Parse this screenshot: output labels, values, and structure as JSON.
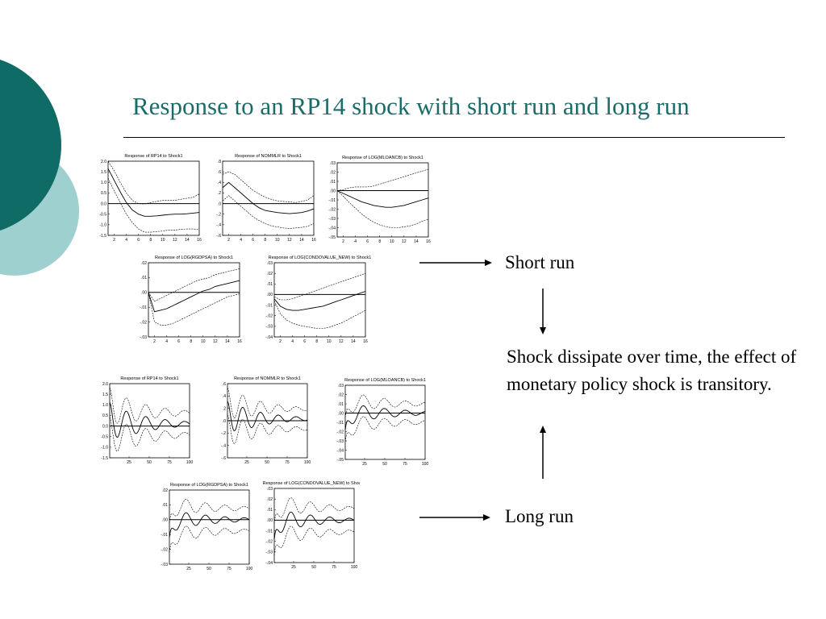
{
  "slide": {
    "title": "Response to an RP14 shock with short run and long run",
    "colors": {
      "title": "#1b6b68",
      "circle_dark": "#0f6b66",
      "circle_light": "#9fd0d0"
    }
  },
  "annotations": {
    "short_run": "Short run",
    "long_run": "Long run",
    "conclusion": "Shock dissipate over time, the effect of monetary policy shock is transitory."
  },
  "chart_data": [
    {
      "type": "line",
      "title": "Response of RP14 to Shock1",
      "yticks": [
        "2.0",
        "1.5",
        "1.0",
        "0.5",
        "0.0",
        "-0.5",
        "-1.0",
        "-1.5"
      ],
      "ylim": [
        -1.5,
        2.0
      ],
      "xticks": [
        "2",
        "4",
        "6",
        "8",
        "10",
        "12",
        "14",
        "16"
      ],
      "xlim": [
        1,
        16
      ],
      "series": [
        {
          "style": "dashed",
          "values": [
            2.0,
            1.55,
            1.0,
            0.5,
            0.15,
            0.0,
            -0.02,
            0.05,
            0.1,
            0.15,
            0.15,
            0.15,
            0.2,
            0.25,
            0.3,
            0.45
          ]
        },
        {
          "style": "solid",
          "values": [
            1.65,
            1.1,
            0.55,
            0.05,
            -0.3,
            -0.5,
            -0.6,
            -0.6,
            -0.58,
            -0.55,
            -0.52,
            -0.5,
            -0.5,
            -0.48,
            -0.45,
            -0.42
          ]
        },
        {
          "style": "dashed",
          "values": [
            1.2,
            0.6,
            0.05,
            -0.5,
            -0.9,
            -1.2,
            -1.35,
            -1.35,
            -1.32,
            -1.3,
            -1.25,
            -1.25,
            -1.22,
            -1.2,
            -1.2,
            -1.22
          ]
        }
      ]
    },
    {
      "type": "line",
      "title": "Response of NOMMLR to Shock1",
      "yticks": [
        ".8",
        ".6",
        ".4",
        ".2",
        ".0",
        "-.2",
        "-.4",
        "-.6"
      ],
      "ylim": [
        -0.6,
        0.8
      ],
      "xticks": [
        "2",
        "4",
        "6",
        "8",
        "10",
        "12",
        "14",
        "16"
      ],
      "xlim": [
        1,
        16
      ],
      "series": [
        {
          "style": "dashed",
          "values": [
            0.55,
            0.6,
            0.55,
            0.45,
            0.35,
            0.25,
            0.18,
            0.12,
            0.08,
            0.05,
            0.04,
            0.03,
            0.02,
            0.04,
            0.07,
            0.15
          ]
        },
        {
          "style": "solid",
          "values": [
            0.3,
            0.4,
            0.3,
            0.2,
            0.1,
            0.0,
            -0.08,
            -0.13,
            -0.15,
            -0.17,
            -0.18,
            -0.19,
            -0.18,
            -0.17,
            -0.14,
            -0.1
          ]
        },
        {
          "style": "dashed",
          "values": [
            0.05,
            0.15,
            0.05,
            -0.05,
            -0.15,
            -0.25,
            -0.32,
            -0.38,
            -0.42,
            -0.44,
            -0.46,
            -0.47,
            -0.46,
            -0.45,
            -0.43,
            -0.38
          ]
        }
      ]
    },
    {
      "type": "line",
      "title": "Response of LOG(MLOANCB) to Shock1",
      "yticks": [
        ".03",
        ".02",
        ".01",
        ".00",
        "-.01",
        "-.02",
        "-.03",
        "-.04",
        "-.05"
      ],
      "ylim": [
        -0.05,
        0.03
      ],
      "xticks": [
        "2",
        "4",
        "6",
        "8",
        "10",
        "12",
        "14",
        "16"
      ],
      "xlim": [
        1,
        16
      ],
      "series": [
        {
          "style": "dashed",
          "values": [
            0.0,
            0.001,
            0.003,
            0.004,
            0.004,
            0.004,
            0.005,
            0.007,
            0.009,
            0.011,
            0.013,
            0.015,
            0.017,
            0.019,
            0.021,
            0.023
          ]
        },
        {
          "style": "solid",
          "values": [
            0.0,
            -0.003,
            -0.006,
            -0.009,
            -0.012,
            -0.014,
            -0.016,
            -0.017,
            -0.018,
            -0.018,
            -0.017,
            -0.016,
            -0.014,
            -0.012,
            -0.01,
            -0.008
          ]
        },
        {
          "style": "dashed",
          "values": [
            0.0,
            -0.006,
            -0.013,
            -0.019,
            -0.025,
            -0.03,
            -0.034,
            -0.037,
            -0.039,
            -0.04,
            -0.04,
            -0.039,
            -0.038,
            -0.036,
            -0.033,
            -0.031
          ]
        }
      ]
    },
    {
      "type": "line",
      "title": "Response of LOG(RGDPSA) to Shock1",
      "yticks": [
        ".02",
        ".01",
        ".00",
        "-.01",
        "-.02",
        "-.03"
      ],
      "ylim": [
        -0.03,
        0.02
      ],
      "xticks": [
        "2",
        "4",
        "6",
        "8",
        "10",
        "12",
        "14",
        "16"
      ],
      "xlim": [
        1,
        16
      ],
      "series": [
        {
          "style": "dashed",
          "values": [
            0.0,
            -0.006,
            -0.004,
            -0.002,
            0.0,
            0.002,
            0.004,
            0.006,
            0.008,
            0.009,
            0.01,
            0.012,
            0.013,
            0.014,
            0.015,
            0.016
          ]
        },
        {
          "style": "solid",
          "values": [
            0.0,
            -0.013,
            -0.012,
            -0.011,
            -0.009,
            -0.007,
            -0.005,
            -0.003,
            -0.001,
            0.001,
            0.002,
            0.004,
            0.005,
            0.006,
            0.007,
            0.008
          ]
        },
        {
          "style": "dashed",
          "values": [
            0.0,
            -0.02,
            -0.022,
            -0.022,
            -0.021,
            -0.019,
            -0.017,
            -0.015,
            -0.013,
            -0.011,
            -0.009,
            -0.007,
            -0.005,
            -0.003,
            -0.002,
            -0.001
          ]
        }
      ]
    },
    {
      "type": "line",
      "title": "Response of LOG(CONDOVALUE_NEW) to Shock1",
      "yticks": [
        ".03",
        ".02",
        ".01",
        ".00",
        "-.01",
        "-.02",
        "-.03",
        "-.04"
      ],
      "ylim": [
        -0.04,
        0.03
      ],
      "xticks": [
        "2",
        "4",
        "6",
        "8",
        "10",
        "12",
        "14",
        "16"
      ],
      "xlim": [
        1,
        16
      ],
      "series": [
        {
          "style": "dashed",
          "values": [
            -0.002,
            -0.005,
            -0.005,
            -0.004,
            -0.002,
            0.0,
            0.002,
            0.004,
            0.006,
            0.008,
            0.01,
            0.012,
            0.014,
            0.016,
            0.018,
            0.02
          ]
        },
        {
          "style": "solid",
          "values": [
            -0.004,
            -0.011,
            -0.014,
            -0.015,
            -0.015,
            -0.014,
            -0.013,
            -0.012,
            -0.011,
            -0.009,
            -0.007,
            -0.005,
            -0.003,
            -0.001,
            0.001,
            0.003
          ]
        },
        {
          "style": "dashed",
          "values": [
            -0.006,
            -0.018,
            -0.024,
            -0.027,
            -0.029,
            -0.03,
            -0.031,
            -0.032,
            -0.032,
            -0.031,
            -0.029,
            -0.027,
            -0.024,
            -0.021,
            -0.018,
            -0.015
          ]
        }
      ]
    },
    {
      "type": "line",
      "title": "Response of RP14 to Shock1",
      "yticks": [
        "2.0",
        "1.5",
        "1.0",
        "0.5",
        "0.0",
        "-0.5",
        "-1.0",
        "-1.5"
      ],
      "ylim": [
        -1.5,
        2.0
      ],
      "xticks": [
        "25",
        "50",
        "75",
        "100"
      ],
      "xlim": [
        1,
        100
      ],
      "long_run": {
        "start": 1.8,
        "amp": 0.95,
        "period": 24,
        "decay": 45,
        "band": 0.7,
        "tail": 0.1
      }
    },
    {
      "type": "line",
      "title": "Response of NOMMLR to Shock1",
      "yticks": [
        ".6",
        ".4",
        ".2",
        ".0",
        "-.2",
        "-.4",
        "-.6"
      ],
      "ylim": [
        -0.6,
        0.6
      ],
      "xticks": [
        "25",
        "50",
        "75",
        "100"
      ],
      "xlim": [
        1,
        100
      ],
      "long_run": {
        "start": 0.5,
        "amp": 0.3,
        "period": 22,
        "decay": 40,
        "band": 0.22,
        "tail": 0.03
      }
    },
    {
      "type": "line",
      "title": "Response of LOG(MLOANCB) to Shock1",
      "yticks": [
        ".03",
        ".02",
        ".01",
        ".00",
        "-.01",
        "-.02",
        "-.03",
        "-.04",
        "-.05"
      ],
      "ylim": [
        -0.05,
        0.03
      ],
      "xticks": [
        "25",
        "50",
        "75",
        "100"
      ],
      "xlim": [
        1,
        100
      ],
      "long_run": {
        "start": -0.03,
        "amp": 0.012,
        "period": 26,
        "decay": 55,
        "band": 0.013,
        "tail": 0.0
      }
    },
    {
      "type": "line",
      "title": "Response of LOG(RGDPSA) to Shock1",
      "yticks": [
        ".02",
        ".01",
        ".00",
        "-.01",
        "-.02",
        "-.03"
      ],
      "ylim": [
        -0.03,
        0.02
      ],
      "xticks": [
        "25",
        "50",
        "75",
        "100"
      ],
      "xlim": [
        1,
        100
      ],
      "long_run": {
        "start": -0.02,
        "amp": 0.007,
        "period": 24,
        "decay": 55,
        "band": 0.01,
        "tail": 0.0
      }
    },
    {
      "type": "line",
      "title": "Response of LOG(CONDOVALUE_NEW) to Shock1",
      "yticks": [
        ".03",
        ".02",
        ".01",
        ".00",
        "-.01",
        "-.02",
        "-.03",
        "-.04"
      ],
      "ylim": [
        -0.04,
        0.03
      ],
      "xticks": [
        "25",
        "50",
        "75",
        "100"
      ],
      "xlim": [
        1,
        100
      ],
      "long_run": {
        "start": -0.03,
        "amp": 0.012,
        "period": 24,
        "decay": 50,
        "band": 0.015,
        "tail": 0.0
      }
    }
  ]
}
